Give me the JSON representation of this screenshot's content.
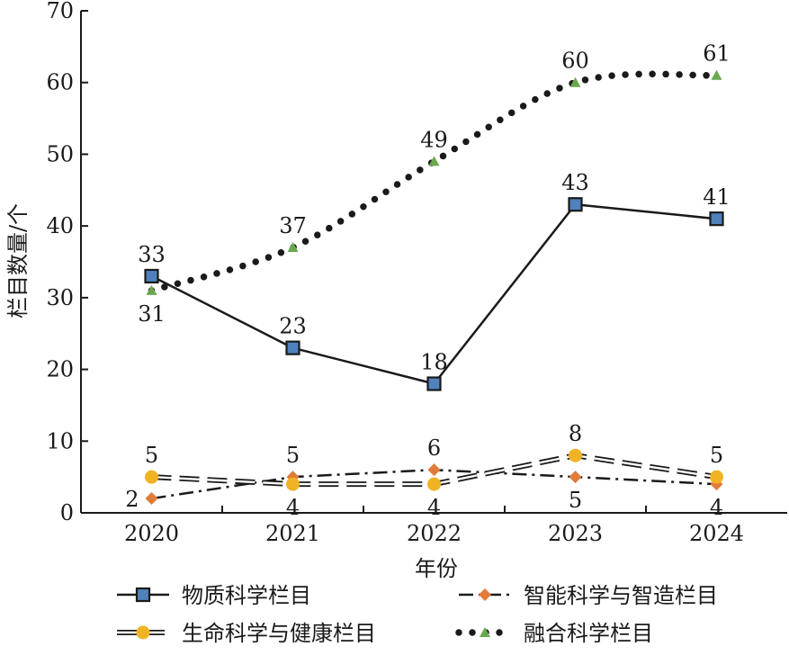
{
  "chart_data": {
    "type": "line",
    "title": "",
    "xlabel": "年份",
    "ylabel": "栏目数量/个",
    "x": [
      "2020",
      "2021",
      "2022",
      "2023",
      "2024"
    ],
    "ylim": [
      0,
      70
    ],
    "yticks": [
      0,
      10,
      20,
      30,
      40,
      50,
      60,
      70
    ],
    "grid": false,
    "legend_position": "bottom",
    "series": [
      {
        "name": "物质科学栏目",
        "values": [
          33,
          23,
          18,
          43,
          41
        ],
        "color": "#1a1a1a",
        "marker_color": "#4f81bd",
        "style": "solid",
        "marker": "square"
      },
      {
        "name": "智能科学与智造栏目",
        "values": [
          2,
          5,
          6,
          5,
          4
        ],
        "color": "#1a1a1a",
        "marker_color": "#e07b39",
        "style": "dashdot",
        "marker": "diamond"
      },
      {
        "name": "生命科学与健康栏目",
        "values": [
          5,
          4,
          4,
          8,
          5
        ],
        "color": "#1a1a1a",
        "marker_color": "#f0b323",
        "style": "double",
        "marker": "circle"
      },
      {
        "name": "融合科学栏目",
        "values": [
          31,
          37,
          49,
          60,
          61
        ],
        "color": "#1a1a1a",
        "marker_color": "#6aa84f",
        "style": "dotted",
        "marker": "triangle"
      }
    ]
  }
}
